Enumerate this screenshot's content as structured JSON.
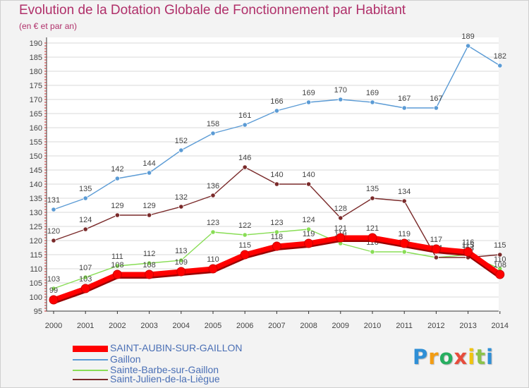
{
  "chart_data": {
    "type": "line",
    "title": "Evolution de la Dotation Globale de Fonctionnement par Habitant",
    "subtitle": "(en € et par an)",
    "xlabel": "",
    "ylabel": "",
    "ylim": [
      95,
      190
    ],
    "yticks": [
      95,
      100,
      105,
      110,
      115,
      120,
      125,
      130,
      135,
      140,
      145,
      150,
      155,
      160,
      165,
      170,
      175,
      180,
      185,
      190
    ],
    "x": [
      "2000",
      "2001",
      "2002",
      "2003",
      "2004",
      "2005",
      "2006",
      "2007",
      "2008",
      "2009",
      "2010",
      "2011",
      "2012",
      "2013",
      "2014"
    ],
    "series": [
      {
        "name": "SAINT-AUBIN-SUR-GAILLON",
        "color": "#ff0000",
        "values": [
          99,
          103,
          108,
          108,
          109,
          110,
          115,
          118,
          119,
          121,
          121,
          119,
          117,
          116,
          108
        ]
      },
      {
        "name": "Gaillon",
        "color": "#5b9bd5",
        "values": [
          131,
          135,
          142,
          144,
          152,
          158,
          161,
          166,
          169,
          170,
          169,
          167,
          167,
          189,
          182
        ]
      },
      {
        "name": "Sainte-Barbe-sur-Gaillon",
        "color": "#88dd55",
        "values": [
          103,
          107,
          111,
          112,
          113,
          123,
          122,
          123,
          124,
          119,
          116,
          116,
          114,
          115,
          110
        ]
      },
      {
        "name": "Saint-Julien-de-la-Liègue",
        "color": "#7a2a2a",
        "values": [
          120,
          124,
          129,
          129,
          132,
          136,
          146,
          140,
          140,
          128,
          135,
          134,
          114,
          114,
          115
        ]
      }
    ]
  },
  "brand": {
    "letters": [
      {
        "ch": "P",
        "color": "#2f8fd6"
      },
      {
        "ch": "r",
        "color": "#f39c12"
      },
      {
        "ch": "o",
        "color": "#27ae60"
      },
      {
        "ch": "x",
        "color": "#e74c3c"
      },
      {
        "ch": "i",
        "color": "#f1c40f"
      },
      {
        "ch": "t",
        "color": "#8bc34a"
      },
      {
        "ch": "i",
        "color": "#2f8fd6"
      }
    ]
  }
}
